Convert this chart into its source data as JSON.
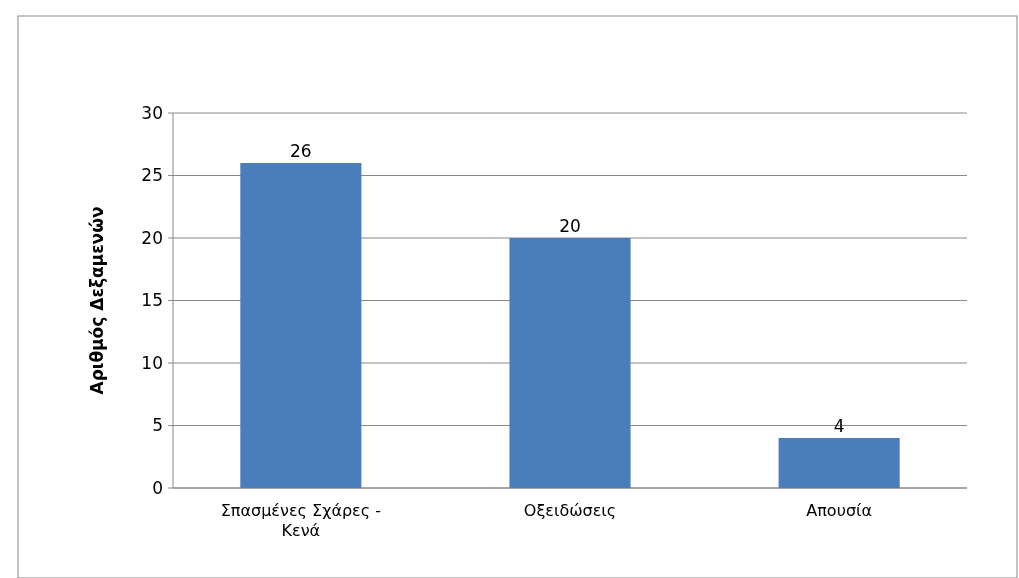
{
  "chart_data": {
    "type": "bar",
    "ylabel": "Αριθμός Δεξαμενών",
    "categories": [
      "Σπασμένες Σχάρες - Κενά",
      "Οξειδώσεις",
      "Απουσία"
    ],
    "values": [
      26,
      20,
      4
    ],
    "color": "#4a7ebb",
    "ylim": [
      0,
      30
    ],
    "yticks": [
      0,
      5,
      10,
      15,
      20,
      25,
      30
    ],
    "grid": "y",
    "data_labels": true
  }
}
